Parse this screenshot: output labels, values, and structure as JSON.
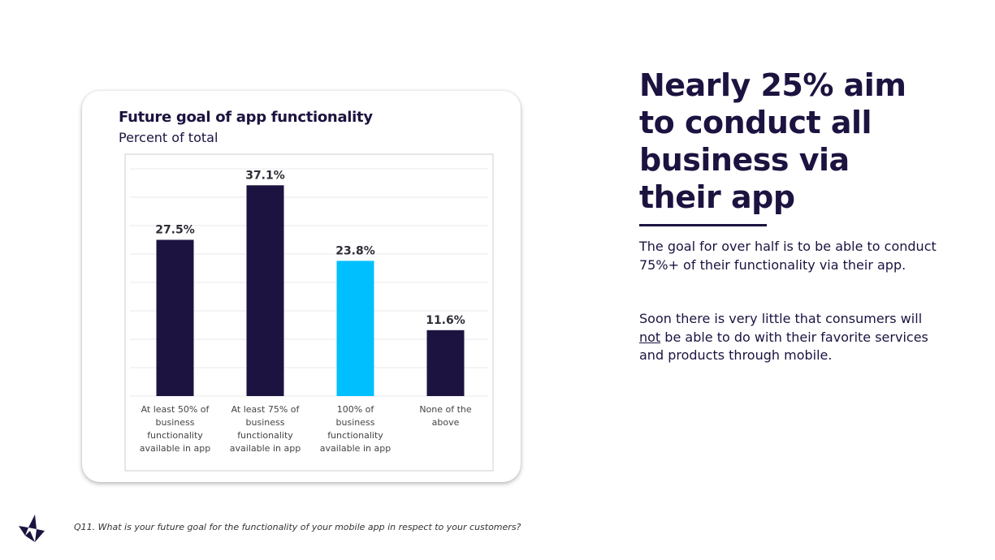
{
  "colors": {
    "navy": "#1d1340",
    "highlight": "#00bfff",
    "grid": "#e8e8ec"
  },
  "chart_data": {
    "type": "bar",
    "title": "Future goal of app functionality",
    "subtitle": "Percent of total",
    "categories": [
      [
        "At least 50% of",
        "business",
        "functionality",
        "available in app"
      ],
      [
        "At least 75% of",
        "business",
        "functionality",
        "available in app"
      ],
      [
        "100% of",
        "business",
        "functionality",
        "available in app"
      ],
      [
        "None of the",
        "above"
      ]
    ],
    "values": [
      27.5,
      37.1,
      23.8,
      11.6
    ],
    "value_labels": [
      "27.5%",
      "37.1%",
      "23.8%",
      "11.6%"
    ],
    "bar_colors": [
      "#1d1340",
      "#1d1340",
      "#00bfff",
      "#1d1340"
    ],
    "ylim": [
      0,
      40
    ],
    "grid": true,
    "xlabel": "",
    "ylabel": ""
  },
  "headline": {
    "line1": "Nearly 25% aim",
    "line2": "to conduct all",
    "line3": "business via",
    "line4": "their app"
  },
  "body": {
    "p1": "The goal for over half is to be able to conduct 75%+ of their functionality via their app.",
    "p2_before": "Soon there is very little that consumers will",
    "p2_underlined": "not",
    "p2_after": "be able to do with their favorite services and products through mobile."
  },
  "footnote": "Q11. What is your future goal for the functionality of your mobile app in respect to your customers?",
  "logo_icon": "brand-logo-icon"
}
